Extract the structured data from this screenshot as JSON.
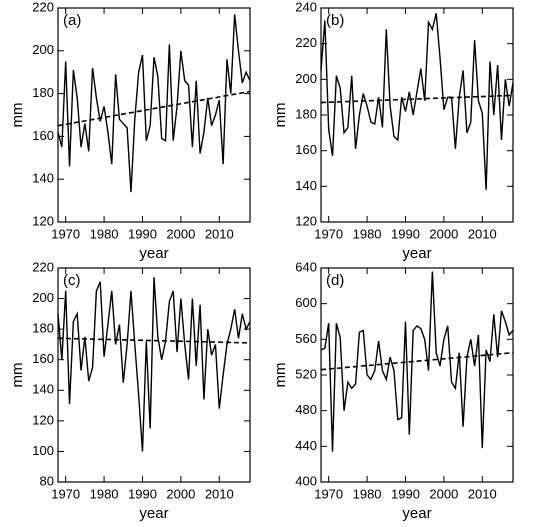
{
  "chart_data": [
    {
      "type": "line",
      "label": "(a)",
      "xlabel": "year",
      "ylabel": "mm",
      "color": "#000000",
      "x": [
        1968,
        1969,
        1970,
        1971,
        1972,
        1973,
        1974,
        1975,
        1976,
        1977,
        1978,
        1979,
        1980,
        1981,
        1982,
        1983,
        1984,
        1985,
        1986,
        1987,
        1988,
        1989,
        1990,
        1991,
        1992,
        1993,
        1994,
        1995,
        1996,
        1997,
        1998,
        1999,
        2000,
        2001,
        2002,
        2003,
        2004,
        2005,
        2006,
        2007,
        2008,
        2009,
        2010,
        2011,
        2012,
        2013,
        2014,
        2015,
        2016,
        2017,
        2018
      ],
      "values": [
        162,
        155,
        195,
        146,
        191,
        178,
        155,
        166,
        153,
        192,
        178,
        167,
        174,
        162,
        147,
        189,
        168,
        166,
        164,
        134,
        168,
        190,
        198,
        158,
        165,
        197,
        188,
        159,
        158,
        203,
        158,
        174,
        200,
        186,
        184,
        155,
        186,
        152,
        162,
        178,
        165,
        170,
        177,
        147,
        196,
        180,
        217,
        200,
        185,
        190,
        186
      ],
      "trend": {
        "x": [
          1968,
          2018
        ],
        "values": [
          165,
          181
        ]
      },
      "xlim": [
        1968,
        2018
      ],
      "xticks": [
        1970,
        1980,
        1990,
        2000,
        2010
      ],
      "ylim": [
        120,
        220
      ],
      "yticks": [
        120,
        140,
        160,
        180,
        200,
        220
      ]
    },
    {
      "type": "line",
      "label": "(b)",
      "xlabel": "year",
      "ylabel": "mm",
      "color": "#000000",
      "x": [
        1968,
        1969,
        1970,
        1971,
        1972,
        1973,
        1974,
        1975,
        1976,
        1977,
        1978,
        1979,
        1980,
        1981,
        1982,
        1983,
        1984,
        1985,
        1986,
        1987,
        1988,
        1989,
        1990,
        1991,
        1992,
        1993,
        1994,
        1995,
        1996,
        1997,
        1998,
        1999,
        2000,
        2001,
        2002,
        2003,
        2004,
        2005,
        2006,
        2007,
        2008,
        2009,
        2010,
        2011,
        2012,
        2013,
        2014,
        2015,
        2016,
        2017,
        2018
      ],
      "values": [
        205,
        233,
        172,
        157,
        202,
        195,
        170,
        173,
        202,
        161,
        180,
        192,
        185,
        176,
        175,
        190,
        173,
        228,
        185,
        168,
        166,
        190,
        182,
        193,
        180,
        193,
        206,
        188,
        232,
        228,
        237,
        212,
        183,
        190,
        190,
        161,
        190,
        205,
        170,
        176,
        222,
        188,
        181,
        138,
        210,
        180,
        208,
        166,
        200,
        185,
        198
      ],
      "trend": {
        "x": [
          1968,
          2018
        ],
        "values": [
          187,
          191
        ]
      },
      "xlim": [
        1968,
        2018
      ],
      "xticks": [
        1970,
        1980,
        1990,
        2000,
        2010
      ],
      "ylim": [
        120,
        240
      ],
      "yticks": [
        120,
        140,
        160,
        180,
        200,
        220,
        240
      ]
    },
    {
      "type": "line",
      "label": "(c)",
      "xlabel": "year",
      "ylabel": "mm",
      "color": "#000000",
      "x": [
        1968,
        1969,
        1970,
        1971,
        1972,
        1973,
        1974,
        1975,
        1976,
        1977,
        1978,
        1979,
        1980,
        1981,
        1982,
        1983,
        1984,
        1985,
        1986,
        1987,
        1988,
        1989,
        1990,
        1991,
        1992,
        1993,
        1994,
        1995,
        1996,
        1997,
        1998,
        1999,
        2000,
        2001,
        2002,
        2003,
        2004,
        2005,
        2006,
        2007,
        2008,
        2009,
        2010,
        2011,
        2012,
        2013,
        2014,
        2015,
        2016,
        2017,
        2018
      ],
      "values": [
        190,
        160,
        205,
        131,
        185,
        190,
        153,
        175,
        146,
        155,
        205,
        211,
        162,
        183,
        205,
        170,
        183,
        145,
        170,
        205,
        170,
        137,
        100,
        172,
        115,
        214,
        175,
        160,
        172,
        198,
        205,
        165,
        200,
        170,
        147,
        200,
        156,
        196,
        134,
        180,
        163,
        170,
        128,
        150,
        170,
        180,
        193,
        174,
        190,
        180,
        185
      ],
      "trend": {
        "x": [
          1968,
          2018
        ],
        "values": [
          174,
          171
        ]
      },
      "xlim": [
        1968,
        2018
      ],
      "xticks": [
        1970,
        1980,
        1990,
        2000,
        2010
      ],
      "ylim": [
        80,
        220
      ],
      "yticks": [
        80,
        100,
        120,
        140,
        160,
        180,
        200,
        220
      ]
    },
    {
      "type": "line",
      "label": "(d)",
      "xlabel": "year",
      "ylabel": "mm",
      "color": "#000000",
      "x": [
        1968,
        1969,
        1970,
        1971,
        1972,
        1973,
        1974,
        1975,
        1976,
        1977,
        1978,
        1979,
        1980,
        1981,
        1982,
        1983,
        1984,
        1985,
        1986,
        1987,
        1988,
        1989,
        1990,
        1991,
        1992,
        1993,
        1994,
        1995,
        1996,
        1997,
        1998,
        1999,
        2000,
        2001,
        2002,
        2003,
        2004,
        2005,
        2006,
        2007,
        2008,
        2009,
        2010,
        2011,
        2012,
        2013,
        2014,
        2015,
        2016,
        2017,
        2018
      ],
      "values": [
        548,
        550,
        578,
        434,
        578,
        562,
        480,
        512,
        505,
        510,
        568,
        570,
        520,
        515,
        525,
        558,
        525,
        515,
        540,
        525,
        470,
        472,
        580,
        453,
        570,
        575,
        572,
        560,
        525,
        636,
        545,
        530,
        560,
        575,
        512,
        505,
        545,
        462,
        540,
        560,
        530,
        565,
        438,
        548,
        535,
        588,
        540,
        592,
        580,
        565,
        570
      ],
      "trend": {
        "x": [
          1968,
          2018
        ],
        "values": [
          526,
          545
        ]
      },
      "xlim": [
        1968,
        2018
      ],
      "xticks": [
        1970,
        1980,
        1990,
        2000,
        2010
      ],
      "ylim": [
        400,
        640
      ],
      "yticks": [
        400,
        440,
        480,
        520,
        560,
        600,
        640
      ]
    }
  ]
}
